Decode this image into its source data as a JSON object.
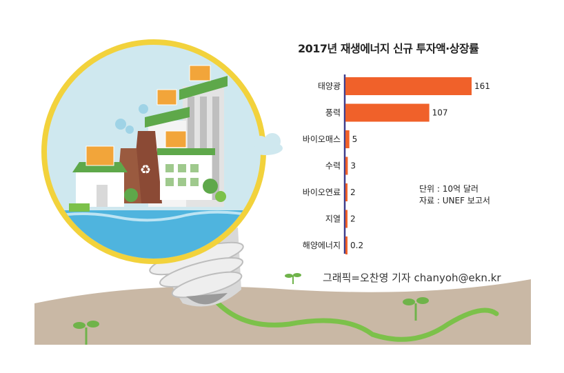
{
  "chart_data": {
    "type": "bar",
    "orientation": "horizontal",
    "title": "2017년 재생에너지 신규 투자액·상장률",
    "categories": [
      "태양광",
      "풍력",
      "바이오매스",
      "수력",
      "바이오연료",
      "지열",
      "해양에너지"
    ],
    "values": [
      161,
      107,
      5,
      3,
      2,
      2,
      0.2
    ],
    "value_labels": [
      "161",
      "107",
      "5",
      "3",
      "2",
      "2",
      "0.2"
    ],
    "xlim": [
      0,
      161
    ],
    "grid": false,
    "legend": "none",
    "bar_color": "#f0612a",
    "axis_color": "#3d3d8c"
  },
  "notes": {
    "unit": "단위 : 10억 달러",
    "source": "자료 : UNEF 보고서"
  },
  "credit": "그래픽=오찬영 기자 chanyoh@ekn.kr",
  "colors": {
    "ground": "#c9b8a5",
    "lens_frame": "#f2d23c",
    "sky": "#cfe8ef",
    "vine": "#7cc14a"
  }
}
